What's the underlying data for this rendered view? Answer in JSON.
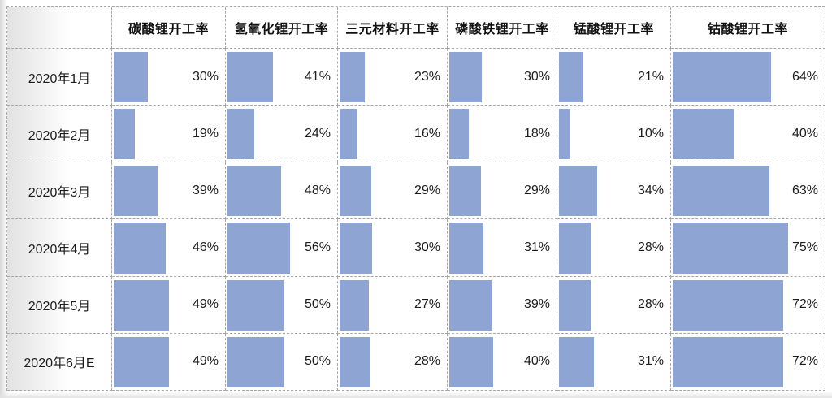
{
  "chart_data": {
    "type": "table",
    "subtype": "data-bars",
    "columns": [
      "碳酸锂开工率",
      "氢氧化锂开工率",
      "三元材料开工率",
      "磷酸铁锂开工率",
      "锰酸锂开工率",
      "钴酸锂开工率"
    ],
    "rows": [
      {
        "label": "2020年1月",
        "values": [
          30,
          41,
          23,
          30,
          21,
          64
        ]
      },
      {
        "label": "2020年2月",
        "values": [
          19,
          24,
          16,
          18,
          10,
          40
        ]
      },
      {
        "label": "2020年3月",
        "values": [
          39,
          48,
          29,
          29,
          34,
          63
        ]
      },
      {
        "label": "2020年4月",
        "values": [
          46,
          56,
          30,
          31,
          28,
          75
        ]
      },
      {
        "label": "2020年5月",
        "values": [
          49,
          50,
          27,
          39,
          28,
          72
        ]
      },
      {
        "label": "2020年6月E",
        "values": [
          49,
          50,
          28,
          40,
          31,
          72
        ]
      }
    ],
    "value_suffix": "%",
    "xlim": [
      0,
      100
    ],
    "bar_color": "#8EA4D2",
    "legend": "none",
    "grid": "dotted"
  },
  "colors": {
    "bar_fill": "#8EA4D2",
    "grid_border": "#a8a8a8",
    "label_gradient_start": "#e2e2e2",
    "text": "#1c1c1c"
  }
}
